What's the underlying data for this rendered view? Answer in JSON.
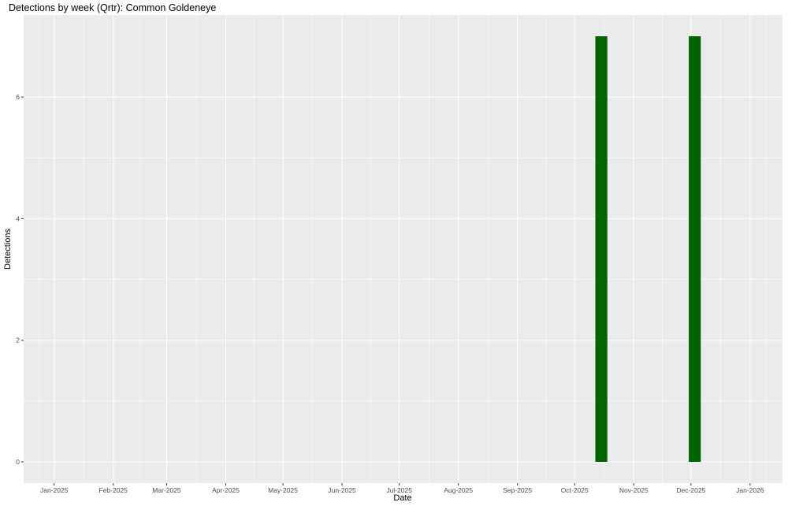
{
  "chart_data": {
    "type": "bar",
    "title": "Detections by week (Qrtr): Common Goldeneye",
    "xlabel": "Date",
    "ylabel": "Detections",
    "x": [
      "2025-10-15",
      "2025-12-03"
    ],
    "values": [
      7,
      7
    ],
    "bar_width_days": 6.3,
    "bar_color": "#006400",
    "panel_background": "#EBEBEB",
    "grid": true,
    "xlim": [
      "2024-12-16",
      "2026-01-18"
    ],
    "ylim": [
      -0.35,
      7.35
    ],
    "x_ticks": [
      "2025-01-01",
      "2025-02-01",
      "2025-03-01",
      "2025-04-01",
      "2025-05-01",
      "2025-06-01",
      "2025-07-01",
      "2025-08-01",
      "2025-09-01",
      "2025-10-01",
      "2025-11-01",
      "2025-12-01",
      "2026-01-01"
    ],
    "x_tick_labels": [
      "Jan-2025",
      "Feb-2025",
      "Mar-2025",
      "Apr-2025",
      "May-2025",
      "Jun-2025",
      "Jul-2025",
      "Aug-2025",
      "Sep-2025",
      "Oct-2025",
      "Nov-2025",
      "Dec-2025",
      "Jan-2026"
    ],
    "y_ticks": [
      0,
      2,
      4,
      6
    ],
    "y_tick_labels": [
      "0",
      "2",
      "4",
      "6"
    ]
  }
}
